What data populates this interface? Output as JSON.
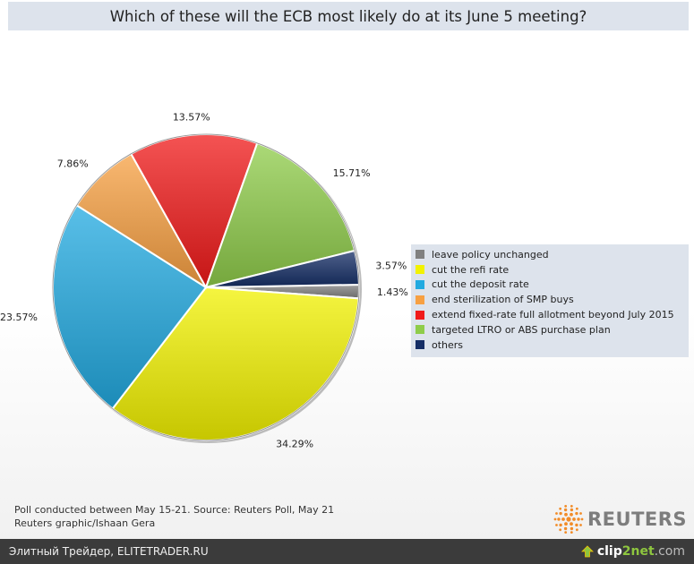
{
  "colors": {
    "leave": "#808080",
    "refi": "#f2f200",
    "deposit": "#22aae0",
    "smp": "#f7a042",
    "ltro_full": "#f01a1a",
    "ltro_abs": "#8fcc4a",
    "others": "#152e66"
  },
  "chart_data": {
    "type": "pie",
    "title": "Which of these will the ECB most likely do at its June 5 meeting?",
    "legend_position": "right",
    "slices": [
      {
        "label": "leave policy unchanged",
        "value": 1.43,
        "value_label": "1.43%",
        "color_key": "leave"
      },
      {
        "label": "cut the refi rate",
        "value": 34.29,
        "value_label": "34.29%",
        "color_key": "refi"
      },
      {
        "label": "cut the deposit rate",
        "value": 23.57,
        "value_label": "23.57%",
        "color_key": "deposit"
      },
      {
        "label": "end sterilization of SMP buys",
        "value": 7.86,
        "value_label": "7.86%",
        "color_key": "smp"
      },
      {
        "label": "extend fixed-rate full allotment beyond July 2015",
        "value": 13.57,
        "value_label": "13.57%",
        "color_key": "ltro_full"
      },
      {
        "label": "targeted LTRO or ABS purchase plan",
        "value": 15.71,
        "value_label": "15.71%",
        "color_key": "ltro_abs"
      },
      {
        "label": "others",
        "value": 3.57,
        "value_label": "3.57%",
        "color_key": "others"
      }
    ]
  },
  "footnote": {
    "line1": "Poll conducted between May 15-21. Source: Reuters Poll, May 21",
    "line2": "Reuters graphic/Ishaan Gera"
  },
  "brand": {
    "name": "REUTERS",
    "icon": "reuters-dots-logo"
  },
  "bottom_bar": {
    "left_text": "Элитный Трейдер, ELITETRADER.RU",
    "clip_brand_a": "clip",
    "clip_brand_b": "2net",
    "clip_brand_c": ".com",
    "icon": "upload-arrow-icon"
  }
}
